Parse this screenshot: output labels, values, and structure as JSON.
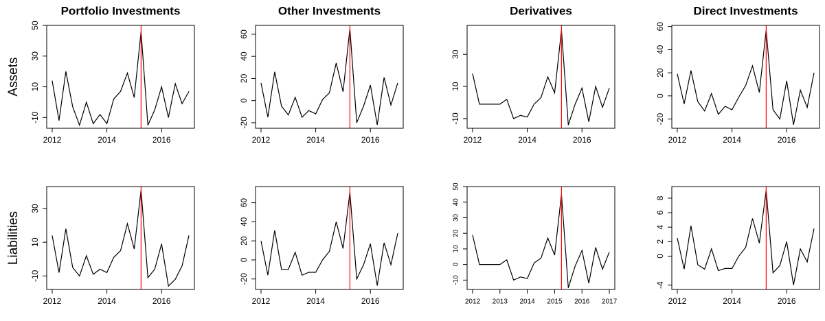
{
  "chart_data": [
    {
      "type": "line",
      "title": "Portfolio Investments",
      "ylabel": "Assets",
      "x": [
        2012,
        2012.25,
        2012.5,
        2012.75,
        2013,
        2013.25,
        2013.5,
        2013.75,
        2014,
        2014.25,
        2014.5,
        2014.75,
        2015,
        2015.25,
        2015.5,
        2015.75,
        2016,
        2016.25,
        2016.5,
        2016.75,
        2017
      ],
      "values": [
        14,
        -12,
        20,
        -3,
        -15,
        0,
        -14,
        -8,
        -14,
        2,
        7,
        19,
        3,
        46,
        -15,
        -5,
        10,
        -10,
        12,
        -1,
        7
      ],
      "color": "#000000",
      "vline": 2015.25,
      "vline_color": "#ff0000",
      "xlim": [
        2011.8,
        2017.2
      ],
      "xticks": [
        2012,
        2014,
        2016
      ],
      "ylim": [
        -17,
        50
      ],
      "yticks": [
        -10,
        10,
        30,
        50
      ]
    },
    {
      "type": "line",
      "title": "Other Investments",
      "x": [
        2012,
        2012.25,
        2012.5,
        2012.75,
        2013,
        2013.25,
        2013.5,
        2013.75,
        2014,
        2014.25,
        2014.5,
        2014.75,
        2015,
        2015.25,
        2015.5,
        2015.75,
        2016,
        2016.25,
        2016.5,
        2016.75,
        2017
      ],
      "values": [
        16,
        -15,
        26,
        -5,
        -13,
        3,
        -15,
        -9,
        -12,
        1,
        7,
        34,
        8,
        65,
        -20,
        -5,
        14,
        -22,
        21,
        -4,
        16
      ],
      "color": "#000000",
      "vline": 2015.25,
      "vline_color": "#ff0000",
      "xlim": [
        2011.8,
        2017.2
      ],
      "xticks": [
        2012,
        2014,
        2016
      ],
      "ylim": [
        -25,
        68
      ],
      "yticks": [
        -20,
        0,
        20,
        40,
        60
      ]
    },
    {
      "type": "line",
      "title": "Derivatives",
      "x": [
        2012,
        2012.25,
        2012.5,
        2012.75,
        2013,
        2013.25,
        2013.5,
        2013.75,
        2014,
        2014.25,
        2014.5,
        2014.75,
        2015,
        2015.25,
        2015.5,
        2015.75,
        2016,
        2016.25,
        2016.5,
        2016.75,
        2017
      ],
      "values": [
        18,
        -1,
        -1,
        -1,
        -1,
        2,
        -10,
        -8,
        -9,
        -1,
        3,
        16,
        6,
        45,
        -14,
        -1,
        9,
        -12,
        10,
        -3,
        9
      ],
      "color": "#000000",
      "vline": 2015.25,
      "vline_color": "#ff0000",
      "xlim": [
        2011.8,
        2017.2
      ],
      "xticks": [
        2012,
        2014,
        2016
      ],
      "ylim": [
        -16,
        48
      ],
      "yticks": [
        -10,
        10,
        30
      ]
    },
    {
      "type": "line",
      "title": "Direct Investments",
      "x": [
        2012,
        2012.25,
        2012.5,
        2012.75,
        2013,
        2013.25,
        2013.5,
        2013.75,
        2014,
        2014.25,
        2014.5,
        2014.75,
        2015,
        2015.25,
        2015.5,
        2015.75,
        2016,
        2016.25,
        2016.5,
        2016.75,
        2017
      ],
      "values": [
        19,
        -7,
        22,
        -5,
        -13,
        2,
        -16,
        -9,
        -12,
        -1,
        9,
        26,
        3,
        57,
        -12,
        -20,
        13,
        -25,
        5,
        -10,
        20
      ],
      "color": "#000000",
      "vline": 2015.25,
      "vline_color": "#ff0000",
      "xlim": [
        2011.8,
        2017.2
      ],
      "xticks": [
        2012,
        2014,
        2016
      ],
      "ylim": [
        -28,
        61
      ],
      "yticks": [
        -20,
        0,
        20,
        40,
        60
      ]
    },
    {
      "type": "line",
      "ylabel": "Liabilities",
      "x": [
        2012,
        2012.25,
        2012.5,
        2012.75,
        2013,
        2013.25,
        2013.5,
        2013.75,
        2014,
        2014.25,
        2014.5,
        2014.75,
        2015,
        2015.25,
        2015.5,
        2015.75,
        2016,
        2016.25,
        2016.5,
        2016.75,
        2017
      ],
      "values": [
        14,
        -8,
        18,
        -5,
        -10,
        2,
        -9,
        -6,
        -8,
        1,
        5,
        21,
        6,
        41,
        -11,
        -6,
        9,
        -16,
        -12,
        -4,
        14
      ],
      "color": "#000000",
      "vline": 2015.25,
      "vline_color": "#ff0000",
      "xlim": [
        2011.8,
        2017.2
      ],
      "xticks": [
        2012,
        2014,
        2016
      ],
      "ylim": [
        -18,
        43
      ],
      "yticks": [
        -10,
        10,
        30
      ]
    },
    {
      "type": "line",
      "x": [
        2012,
        2012.25,
        2012.5,
        2012.75,
        2013,
        2013.25,
        2013.5,
        2013.75,
        2014,
        2014.25,
        2014.5,
        2014.75,
        2015,
        2015.25,
        2015.5,
        2015.75,
        2016,
        2016.25,
        2016.5,
        2016.75,
        2017
      ],
      "values": [
        20,
        -16,
        31,
        -10,
        -10,
        8,
        -16,
        -13,
        -13,
        0,
        9,
        40,
        12,
        71,
        -20,
        -5,
        17,
        -27,
        18,
        -5,
        28
      ],
      "color": "#000000",
      "vline": 2015.25,
      "vline_color": "#ff0000",
      "xlim": [
        2011.8,
        2017.2
      ],
      "xticks": [
        2012,
        2014,
        2016
      ],
      "ylim": [
        -31,
        77
      ],
      "yticks": [
        -20,
        0,
        20,
        40,
        60
      ]
    },
    {
      "type": "line",
      "x": [
        2012,
        2012.25,
        2012.5,
        2012.75,
        2013,
        2013.25,
        2013.5,
        2013.75,
        2014,
        2014.25,
        2014.5,
        2014.75,
        2015,
        2015.25,
        2015.5,
        2015.75,
        2016,
        2016.25,
        2016.5,
        2016.75,
        2017
      ],
      "values": [
        19,
        0,
        0,
        0,
        0,
        3,
        -10,
        -8,
        -9,
        1,
        4,
        17,
        6,
        45,
        -15,
        -1,
        9,
        -12,
        11,
        -3,
        8
      ],
      "color": "#000000",
      "vline": 2015.25,
      "vline_color": "#ff0000",
      "xlim": [
        2011.8,
        2017.2
      ],
      "xticks": [
        2012,
        2013,
        2014,
        2015,
        2016,
        2017
      ],
      "ylim": [
        -16,
        50
      ],
      "yticks": [
        -10,
        0,
        10,
        20,
        30,
        40,
        50
      ]
    },
    {
      "type": "line",
      "x": [
        2012,
        2012.25,
        2012.5,
        2012.75,
        2013,
        2013.25,
        2013.5,
        2013.75,
        2014,
        2014.25,
        2014.5,
        2014.75,
        2015,
        2015.25,
        2015.5,
        2015.75,
        2016,
        2016.25,
        2016.5,
        2016.75,
        2017
      ],
      "values": [
        2.5,
        -1.8,
        4.2,
        -1.2,
        -1.8,
        1,
        -2,
        -1.7,
        -1.7,
        0,
        1.2,
        5.2,
        1.8,
        9.1,
        -2.3,
        -1.3,
        2,
        -4,
        1,
        -0.8,
        3.8
      ],
      "color": "#000000",
      "vline": 2015.25,
      "vline_color": "#ff0000",
      "xlim": [
        2011.8,
        2017.2
      ],
      "xticks": [
        2012,
        2014,
        2016
      ],
      "ylim": [
        -4.6,
        9.6
      ],
      "yticks": [
        -4,
        0,
        2,
        4,
        6,
        8
      ]
    }
  ]
}
